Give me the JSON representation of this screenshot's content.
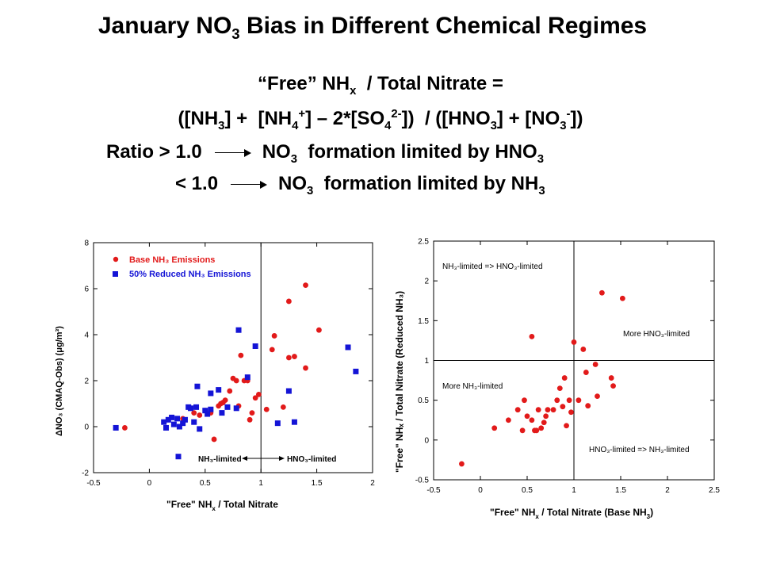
{
  "title": {
    "main": "January NO",
    "sub": "3",
    "rest": " Bias in Different Chemical Regimes"
  },
  "formula": {
    "line1": {
      "a": "“Free” NH",
      "a_sub": "x",
      "b": "  / Total Nitrate ="
    },
    "line2": {
      "p1": "([NH",
      "s1": "3",
      "p2": "] +  [NH",
      "s2": "4",
      "u2": "+",
      "p3": "] – 2*[SO",
      "s3": "4",
      "u3": "2-",
      "p4": "])  / ([HNO",
      "s4": "3",
      "p5": "] + [NO",
      "s5": "3",
      "u5": "-",
      "p6": "])"
    },
    "line3": {
      "lhs": "Ratio > 1.0",
      "t1": "NO",
      "t1_sub": "3",
      "t2": "  formation limited by HNO",
      "t2_sub": "3"
    },
    "line4": {
      "lhs": "< 1.0",
      "t1": "NO",
      "t1_sub": "3",
      "t2": "  formation limited by NH",
      "t2_sub": "3"
    }
  },
  "colors": {
    "red": "#e21a1a",
    "blue": "#1414d6"
  },
  "chart_data": [
    {
      "type": "scatter",
      "xlabel": "\"Free\" NH",
      "xlabel_sub": "x",
      "xlabel_rest": " / Total Nitrate",
      "ylabel": "ΔNO₃ (CMAQ-Obs) (μg/m³)",
      "xlim": [
        -0.5,
        2
      ],
      "ylim": [
        -2,
        8
      ],
      "xticks": [
        "-0.5",
        "0",
        "0.5",
        "1",
        "1.5",
        "2"
      ],
      "yticks": [
        "-2",
        "0",
        "2",
        "4",
        "6",
        "8"
      ],
      "vline": 1,
      "legend": "top-left",
      "annotations": {
        "left": "NH₃-limited",
        "right": "HNO₃-limited"
      },
      "series": [
        {
          "name": "Base NH₃ Emissions",
          "marker": "circle",
          "points": [
            [
              -0.22,
              -0.05
            ],
            [
              0.3,
              0.35
            ],
            [
              0.4,
              0.6
            ],
            [
              0.45,
              0.5
            ],
            [
              0.5,
              0.7
            ],
            [
              0.55,
              0.6
            ],
            [
              0.58,
              -0.55
            ],
            [
              0.62,
              0.9
            ],
            [
              0.64,
              1.0
            ],
            [
              0.66,
              1.05
            ],
            [
              0.68,
              1.15
            ],
            [
              0.72,
              1.55
            ],
            [
              0.75,
              2.1
            ],
            [
              0.78,
              2.0
            ],
            [
              0.8,
              0.9
            ],
            [
              0.82,
              3.1
            ],
            [
              0.85,
              2.0
            ],
            [
              0.88,
              2.0
            ],
            [
              0.9,
              0.3
            ],
            [
              0.92,
              0.6
            ],
            [
              0.95,
              1.25
            ],
            [
              0.98,
              1.4
            ],
            [
              1.05,
              0.75
            ],
            [
              1.1,
              3.35
            ],
            [
              1.12,
              3.95
            ],
            [
              1.2,
              0.85
            ],
            [
              1.25,
              3.0
            ],
            [
              1.25,
              5.45
            ],
            [
              1.3,
              3.05
            ],
            [
              1.4,
              2.55
            ],
            [
              1.4,
              6.15
            ],
            [
              1.52,
              4.2
            ]
          ]
        },
        {
          "name": "50% Reduced NH₃ Emissions",
          "marker": "square",
          "points": [
            [
              -0.3,
              -0.05
            ],
            [
              0.13,
              0.2
            ],
            [
              0.15,
              -0.05
            ],
            [
              0.17,
              0.3
            ],
            [
              0.2,
              0.4
            ],
            [
              0.22,
              0.1
            ],
            [
              0.25,
              0.35
            ],
            [
              0.27,
              0.0
            ],
            [
              0.3,
              0.15
            ],
            [
              0.32,
              0.3
            ],
            [
              0.35,
              0.85
            ],
            [
              0.37,
              0.8
            ],
            [
              0.4,
              0.2
            ],
            [
              0.42,
              0.85
            ],
            [
              0.43,
              1.75
            ],
            [
              0.45,
              -0.1
            ],
            [
              0.5,
              0.7
            ],
            [
              0.52,
              0.55
            ],
            [
              0.55,
              0.75
            ],
            [
              0.55,
              1.45
            ],
            [
              0.62,
              1.6
            ],
            [
              0.65,
              0.6
            ],
            [
              0.7,
              0.85
            ],
            [
              0.78,
              0.8
            ],
            [
              0.8,
              4.2
            ],
            [
              0.88,
              2.15
            ],
            [
              0.95,
              3.5
            ],
            [
              1.15,
              0.15
            ],
            [
              1.25,
              1.55
            ],
            [
              1.3,
              0.2
            ],
            [
              1.78,
              3.45
            ],
            [
              1.85,
              2.4
            ],
            [
              0.26,
              -1.3
            ]
          ]
        }
      ]
    },
    {
      "type": "scatter",
      "xlabel": "\"Free\" NH",
      "xlabel_sub": "x",
      "xlabel_rest": " / Total Nitrate (Base NH",
      "xlabel_sub2": "3",
      "xlabel_end": ")",
      "ylabel": "\"Free\" NHₓ / Total Nitrate (Reduced NH₃)",
      "xlim": [
        -0.5,
        2.5
      ],
      "ylim": [
        -0.5,
        2.5
      ],
      "xticks": [
        "-0.5",
        "0",
        "0.5",
        "1",
        "1.5",
        "2",
        "2.5"
      ],
      "yticks": [
        "-0.5",
        "0",
        "0.5",
        "1",
        "1.5",
        "2",
        "2.5"
      ],
      "vline": 1,
      "hline": 1,
      "annotations": {
        "tl": "NH₃-limited => HNO₃-limited",
        "ml": "More NH₃-limited",
        "mr": "More HNO₃-limited",
        "br": "HNO₃-limited => NH₃-limited"
      },
      "series": [
        {
          "name": "",
          "marker": "circle",
          "points": [
            [
              -0.2,
              -0.3
            ],
            [
              0.15,
              0.15
            ],
            [
              0.3,
              0.25
            ],
            [
              0.4,
              0.38
            ],
            [
              0.45,
              0.12
            ],
            [
              0.47,
              0.5
            ],
            [
              0.5,
              0.3
            ],
            [
              0.55,
              0.25
            ],
            [
              0.55,
              1.3
            ],
            [
              0.58,
              0.12
            ],
            [
              0.6,
              0.12
            ],
            [
              0.62,
              0.38
            ],
            [
              0.65,
              0.15
            ],
            [
              0.68,
              0.22
            ],
            [
              0.7,
              0.3
            ],
            [
              0.72,
              0.38
            ],
            [
              0.78,
              0.38
            ],
            [
              0.82,
              0.5
            ],
            [
              0.85,
              0.65
            ],
            [
              0.88,
              0.42
            ],
            [
              0.9,
              0.78
            ],
            [
              0.92,
              0.18
            ],
            [
              0.95,
              0.5
            ],
            [
              0.97,
              0.35
            ],
            [
              1.0,
              1.23
            ],
            [
              1.05,
              0.5
            ],
            [
              1.1,
              1.14
            ],
            [
              1.13,
              0.85
            ],
            [
              1.15,
              0.43
            ],
            [
              1.23,
              0.95
            ],
            [
              1.25,
              0.55
            ],
            [
              1.3,
              1.85
            ],
            [
              1.4,
              0.78
            ],
            [
              1.42,
              0.68
            ],
            [
              1.52,
              1.78
            ]
          ]
        }
      ]
    }
  ]
}
